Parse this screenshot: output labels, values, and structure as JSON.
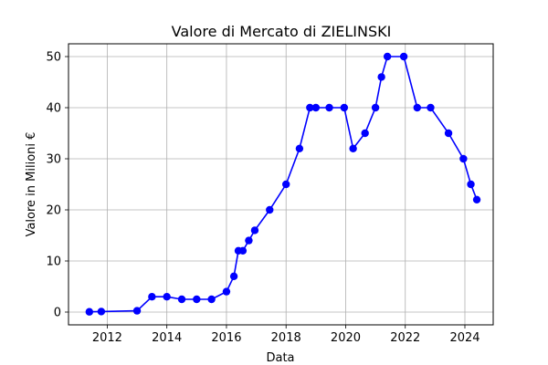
{
  "chart_data": {
    "type": "line",
    "title": "Valore di Mercato di ZIELINSKI",
    "xlabel": "Data",
    "ylabel": "Valore in Milioni €",
    "xlim": [
      2010.7,
      2024.95
    ],
    "ylim": [
      -2.5,
      52.5
    ],
    "x_ticks": [
      2012,
      2014,
      2016,
      2018,
      2020,
      2022,
      2024
    ],
    "y_ticks": [
      0,
      10,
      20,
      30,
      40,
      50
    ],
    "grid": true,
    "series": [
      {
        "color": "#0000ff",
        "marker": "circle",
        "points": [
          {
            "x": 2011.4,
            "y": 0.05
          },
          {
            "x": 2011.8,
            "y": 0.1
          },
          {
            "x": 2013.0,
            "y": 0.25
          },
          {
            "x": 2013.5,
            "y": 3
          },
          {
            "x": 2014.0,
            "y": 3
          },
          {
            "x": 2014.5,
            "y": 2.5
          },
          {
            "x": 2015.0,
            "y": 2.5
          },
          {
            "x": 2015.5,
            "y": 2.5
          },
          {
            "x": 2016.0,
            "y": 4
          },
          {
            "x": 2016.25,
            "y": 7
          },
          {
            "x": 2016.4,
            "y": 12
          },
          {
            "x": 2016.55,
            "y": 12
          },
          {
            "x": 2016.75,
            "y": 14
          },
          {
            "x": 2016.95,
            "y": 16
          },
          {
            "x": 2017.45,
            "y": 20
          },
          {
            "x": 2018.0,
            "y": 25
          },
          {
            "x": 2018.45,
            "y": 32
          },
          {
            "x": 2018.8,
            "y": 40
          },
          {
            "x": 2019.0,
            "y": 40
          },
          {
            "x": 2019.45,
            "y": 40
          },
          {
            "x": 2019.95,
            "y": 40
          },
          {
            "x": 2020.25,
            "y": 32
          },
          {
            "x": 2020.65,
            "y": 35
          },
          {
            "x": 2021.0,
            "y": 40
          },
          {
            "x": 2021.2,
            "y": 46
          },
          {
            "x": 2021.4,
            "y": 50
          },
          {
            "x": 2021.95,
            "y": 50
          },
          {
            "x": 2022.4,
            "y": 40
          },
          {
            "x": 2022.85,
            "y": 40
          },
          {
            "x": 2023.45,
            "y": 35
          },
          {
            "x": 2023.95,
            "y": 30
          },
          {
            "x": 2024.2,
            "y": 25
          },
          {
            "x": 2024.4,
            "y": 22
          }
        ]
      }
    ]
  }
}
